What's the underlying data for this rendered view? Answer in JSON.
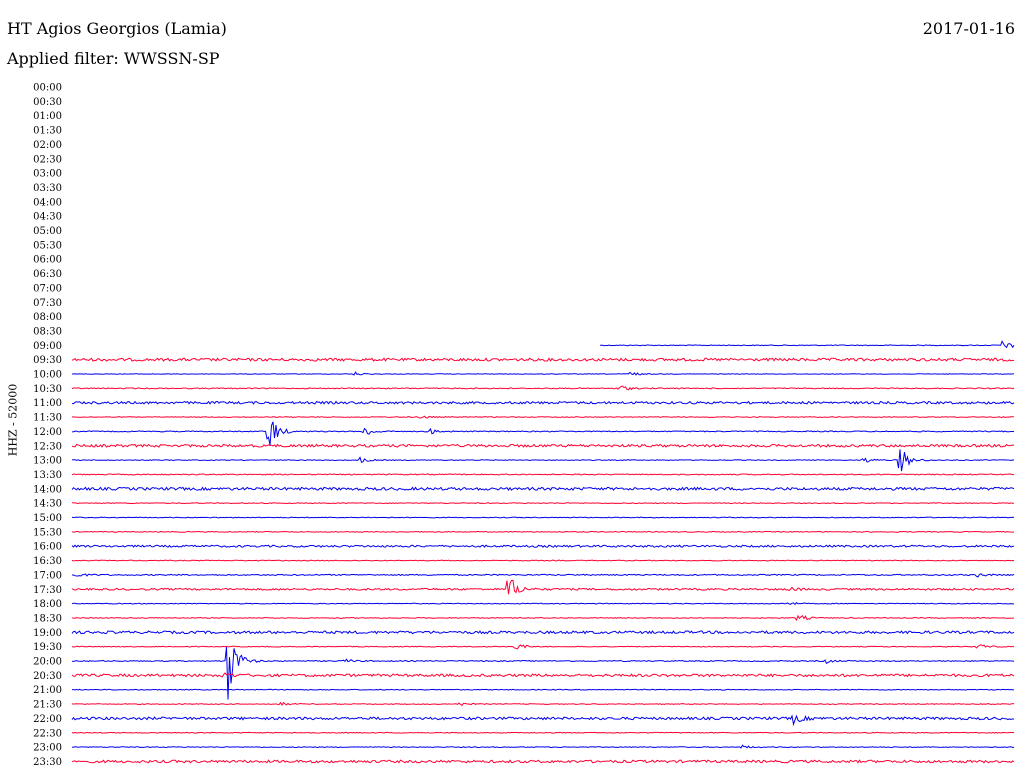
{
  "header": {
    "station": "HT Agios Georgios (Lamia)",
    "date": "2017-01-16",
    "filter": "Applied filter: WWSSN-SP"
  },
  "chart_data": {
    "type": "line",
    "title": "HT Agios Georgios (Lamia)",
    "subtitle": "Applied filter: WWSSN-SP",
    "ylabel": "HHZ - 52000",
    "xlabel": "",
    "row_minutes": 30,
    "grid": false,
    "colors": {
      "blue": "#0000ee",
      "red": "#ff0033"
    },
    "rows": [
      {
        "time": "00:00"
      },
      {
        "time": "00:30"
      },
      {
        "time": "01:00"
      },
      {
        "time": "01:30"
      },
      {
        "time": "02:00"
      },
      {
        "time": "02:30"
      },
      {
        "time": "03:00"
      },
      {
        "time": "03:30"
      },
      {
        "time": "04:00"
      },
      {
        "time": "04:30"
      },
      {
        "time": "05:00"
      },
      {
        "time": "05:30"
      },
      {
        "time": "06:00"
      },
      {
        "time": "06:30"
      },
      {
        "time": "07:00"
      },
      {
        "time": "07:30"
      },
      {
        "time": "08:00"
      },
      {
        "time": "08:30"
      },
      {
        "time": "09:00",
        "color": "blue",
        "start": 0.56,
        "noise": 0.4,
        "events": [
          [
            0.985,
            5
          ],
          [
            0.999,
            4
          ]
        ]
      },
      {
        "time": "09:30",
        "color": "red",
        "noise": 1.4,
        "events": []
      },
      {
        "time": "10:00",
        "color": "blue",
        "noise": 0.3,
        "events": [
          [
            0.3,
            2
          ],
          [
            0.59,
            3
          ]
        ]
      },
      {
        "time": "10:30",
        "color": "red",
        "noise": 0.5,
        "events": [
          [
            0.58,
            4
          ]
        ]
      },
      {
        "time": "11:00",
        "color": "blue",
        "noise": 1.2,
        "events": []
      },
      {
        "time": "11:30",
        "color": "red",
        "noise": 0.4,
        "events": [
          [
            0.37,
            2
          ]
        ]
      },
      {
        "time": "12:00",
        "color": "blue",
        "noise": 0.5,
        "events": [
          [
            0.208,
            24
          ],
          [
            0.31,
            6
          ],
          [
            0.38,
            3
          ]
        ]
      },
      {
        "time": "12:30",
        "color": "red",
        "noise": 1.3,
        "events": []
      },
      {
        "time": "13:00",
        "color": "blue",
        "noise": 0.4,
        "events": [
          [
            0.305,
            3
          ],
          [
            0.84,
            3
          ],
          [
            0.877,
            18
          ]
        ]
      },
      {
        "time": "13:30",
        "color": "red",
        "noise": 0.5,
        "events": []
      },
      {
        "time": "14:00",
        "color": "blue",
        "noise": 1.4,
        "events": []
      },
      {
        "time": "14:30",
        "color": "red",
        "noise": 0.4,
        "events": []
      },
      {
        "time": "15:00",
        "color": "blue",
        "noise": 0.4,
        "events": []
      },
      {
        "time": "15:30",
        "color": "red",
        "noise": 0.4,
        "events": []
      },
      {
        "time": "16:00",
        "color": "blue",
        "noise": 1.0,
        "events": []
      },
      {
        "time": "16:30",
        "color": "red",
        "noise": 0.4,
        "events": []
      },
      {
        "time": "17:00",
        "color": "blue",
        "noise": 0.6,
        "events": [
          [
            0.005,
            2
          ],
          [
            0.96,
            2
          ]
        ]
      },
      {
        "time": "17:30",
        "color": "red",
        "noise": 0.9,
        "events": [
          [
            0.462,
            18
          ],
          [
            0.76,
            2
          ]
        ]
      },
      {
        "time": "18:00",
        "color": "blue",
        "noise": 0.4,
        "events": [
          [
            0.76,
            2
          ]
        ]
      },
      {
        "time": "18:30",
        "color": "red",
        "noise": 0.4,
        "events": [
          [
            0.77,
            4
          ]
        ]
      },
      {
        "time": "19:00",
        "color": "blue",
        "noise": 1.3,
        "events": []
      },
      {
        "time": "19:30",
        "color": "red",
        "noise": 0.4,
        "events": [
          [
            0.47,
            4
          ],
          [
            0.96,
            4
          ]
        ]
      },
      {
        "time": "20:00",
        "color": "blue",
        "noise": 0.5,
        "events": [
          [
            0.165,
            44
          ],
          [
            0.29,
            2
          ],
          [
            0.8,
            2
          ]
        ]
      },
      {
        "time": "20:30",
        "color": "red",
        "noise": 1.3,
        "events": [
          [
            0.16,
            3
          ]
        ]
      },
      {
        "time": "21:00",
        "color": "blue",
        "noise": 0.4,
        "events": []
      },
      {
        "time": "21:30",
        "color": "red",
        "noise": 0.4,
        "events": [
          [
            0.22,
            2
          ],
          [
            0.41,
            2
          ]
        ]
      },
      {
        "time": "22:00",
        "color": "blue",
        "noise": 1.3,
        "events": [
          [
            0.765,
            5
          ]
        ]
      },
      {
        "time": "22:30",
        "color": "red",
        "noise": 0.4,
        "events": []
      },
      {
        "time": "23:00",
        "color": "blue",
        "noise": 0.4,
        "events": [
          [
            0.71,
            2
          ]
        ]
      },
      {
        "time": "23:30",
        "color": "red",
        "noise": 1.3,
        "events": []
      }
    ]
  }
}
